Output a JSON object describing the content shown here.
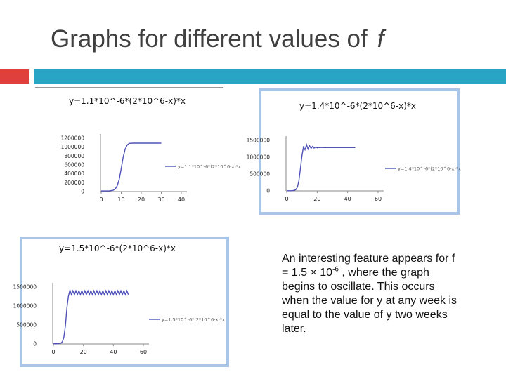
{
  "slide": {
    "title": "Graphs for different values of",
    "title_variable": "f"
  },
  "description": {
    "part1": "An interesting feature appears for f = 1.5 × 10",
    "exponent": "-6",
    "part2": " , where the graph begins to oscillate. This occurs when the value for y at any week is equal to the value of y two weeks later."
  },
  "colors": {
    "line": "#4f52b8",
    "accent_red": "#e0403b",
    "accent_teal": "#28a4c4",
    "panel_border": "#a9c6e8"
  },
  "chart_data": [
    {
      "type": "line",
      "title": "y=1.1*10^-6*(2*10^6-x)*x",
      "x_ticks": [
        "0",
        "10",
        "20",
        "30",
        "40"
      ],
      "y_ticks": [
        "0",
        "200000",
        "400000",
        "600000",
        "800000",
        "1000000",
        "1200000"
      ],
      "xlim": [
        0,
        40
      ],
      "ylim": [
        0,
        1200000
      ],
      "legend": "y=1.1*10^-6*(2*10^6-x)*x",
      "legend_position": "right",
      "series": [
        {
          "x": [
            0,
            4,
            6,
            7,
            8,
            9,
            10,
            11,
            12,
            13,
            14,
            16,
            18,
            20,
            22,
            25,
            28,
            30
          ],
          "y": [
            15000,
            15000,
            30000,
            60000,
            130000,
            280000,
            520000,
            780000,
            960000,
            1050000,
            1085000,
            1090000,
            1090000,
            1090000,
            1090000,
            1090000,
            1090000,
            1090000
          ]
        }
      ]
    },
    {
      "type": "line",
      "title": "y=1.4*10^-6*(2*10^6-x)*x",
      "x_ticks": [
        "0",
        "20",
        "40",
        "60"
      ],
      "y_ticks": [
        "0",
        "500000",
        "1000000",
        "1500000"
      ],
      "xlim": [
        0,
        60
      ],
      "ylim": [
        0,
        1500000
      ],
      "legend": "y=1.4*10^-6*(2*10^6-x)*x",
      "legend_position": "right",
      "series": [
        {
          "x": [
            0,
            3,
            5,
            6,
            7,
            8,
            9,
            10,
            11,
            12,
            13,
            14,
            15,
            16,
            17,
            18,
            19,
            20,
            22,
            24,
            26,
            28,
            30,
            35,
            40,
            45
          ],
          "y": [
            5000,
            5000,
            15000,
            40000,
            110000,
            300000,
            660000,
            1050000,
            1300000,
            1220000,
            1370000,
            1240000,
            1340000,
            1260000,
            1320000,
            1270000,
            1300000,
            1280000,
            1290000,
            1285000,
            1285000,
            1285000,
            1285000,
            1285000,
            1285000,
            1285000
          ]
        }
      ]
    },
    {
      "type": "line",
      "title": "y=1.5*10^-6*(2*10^6-x)*x",
      "x_ticks": [
        "0",
        "20",
        "40",
        "60"
      ],
      "y_ticks": [
        "0",
        "500000",
        "1000000",
        "1500000"
      ],
      "xlim": [
        0,
        60
      ],
      "ylim": [
        0,
        1500000
      ],
      "legend": "y=1.5*10^-6*(2*10^6-x)*x",
      "legend_position": "right",
      "series": [
        {
          "x": [
            0,
            3,
            5,
            6,
            7,
            8,
            9,
            10,
            11,
            12,
            13,
            14,
            15,
            16,
            17,
            18,
            19,
            20,
            21,
            22,
            23,
            24,
            25,
            26,
            27,
            28,
            29,
            30,
            31,
            32,
            33,
            34,
            35,
            36,
            37,
            38,
            39,
            40,
            41,
            42,
            43,
            44,
            45,
            46,
            47,
            48,
            49,
            50
          ],
          "y": [
            5000,
            5000,
            20000,
            60000,
            180000,
            480000,
            950000,
            1250000,
            1420000,
            1300000,
            1400000,
            1300000,
            1400000,
            1300000,
            1400000,
            1300000,
            1400000,
            1300000,
            1400000,
            1300000,
            1400000,
            1300000,
            1400000,
            1300000,
            1400000,
            1300000,
            1400000,
            1300000,
            1400000,
            1300000,
            1400000,
            1300000,
            1400000,
            1300000,
            1400000,
            1300000,
            1400000,
            1300000,
            1400000,
            1300000,
            1400000,
            1300000,
            1400000,
            1300000,
            1400000,
            1300000,
            1400000,
            1300000
          ]
        }
      ]
    }
  ]
}
